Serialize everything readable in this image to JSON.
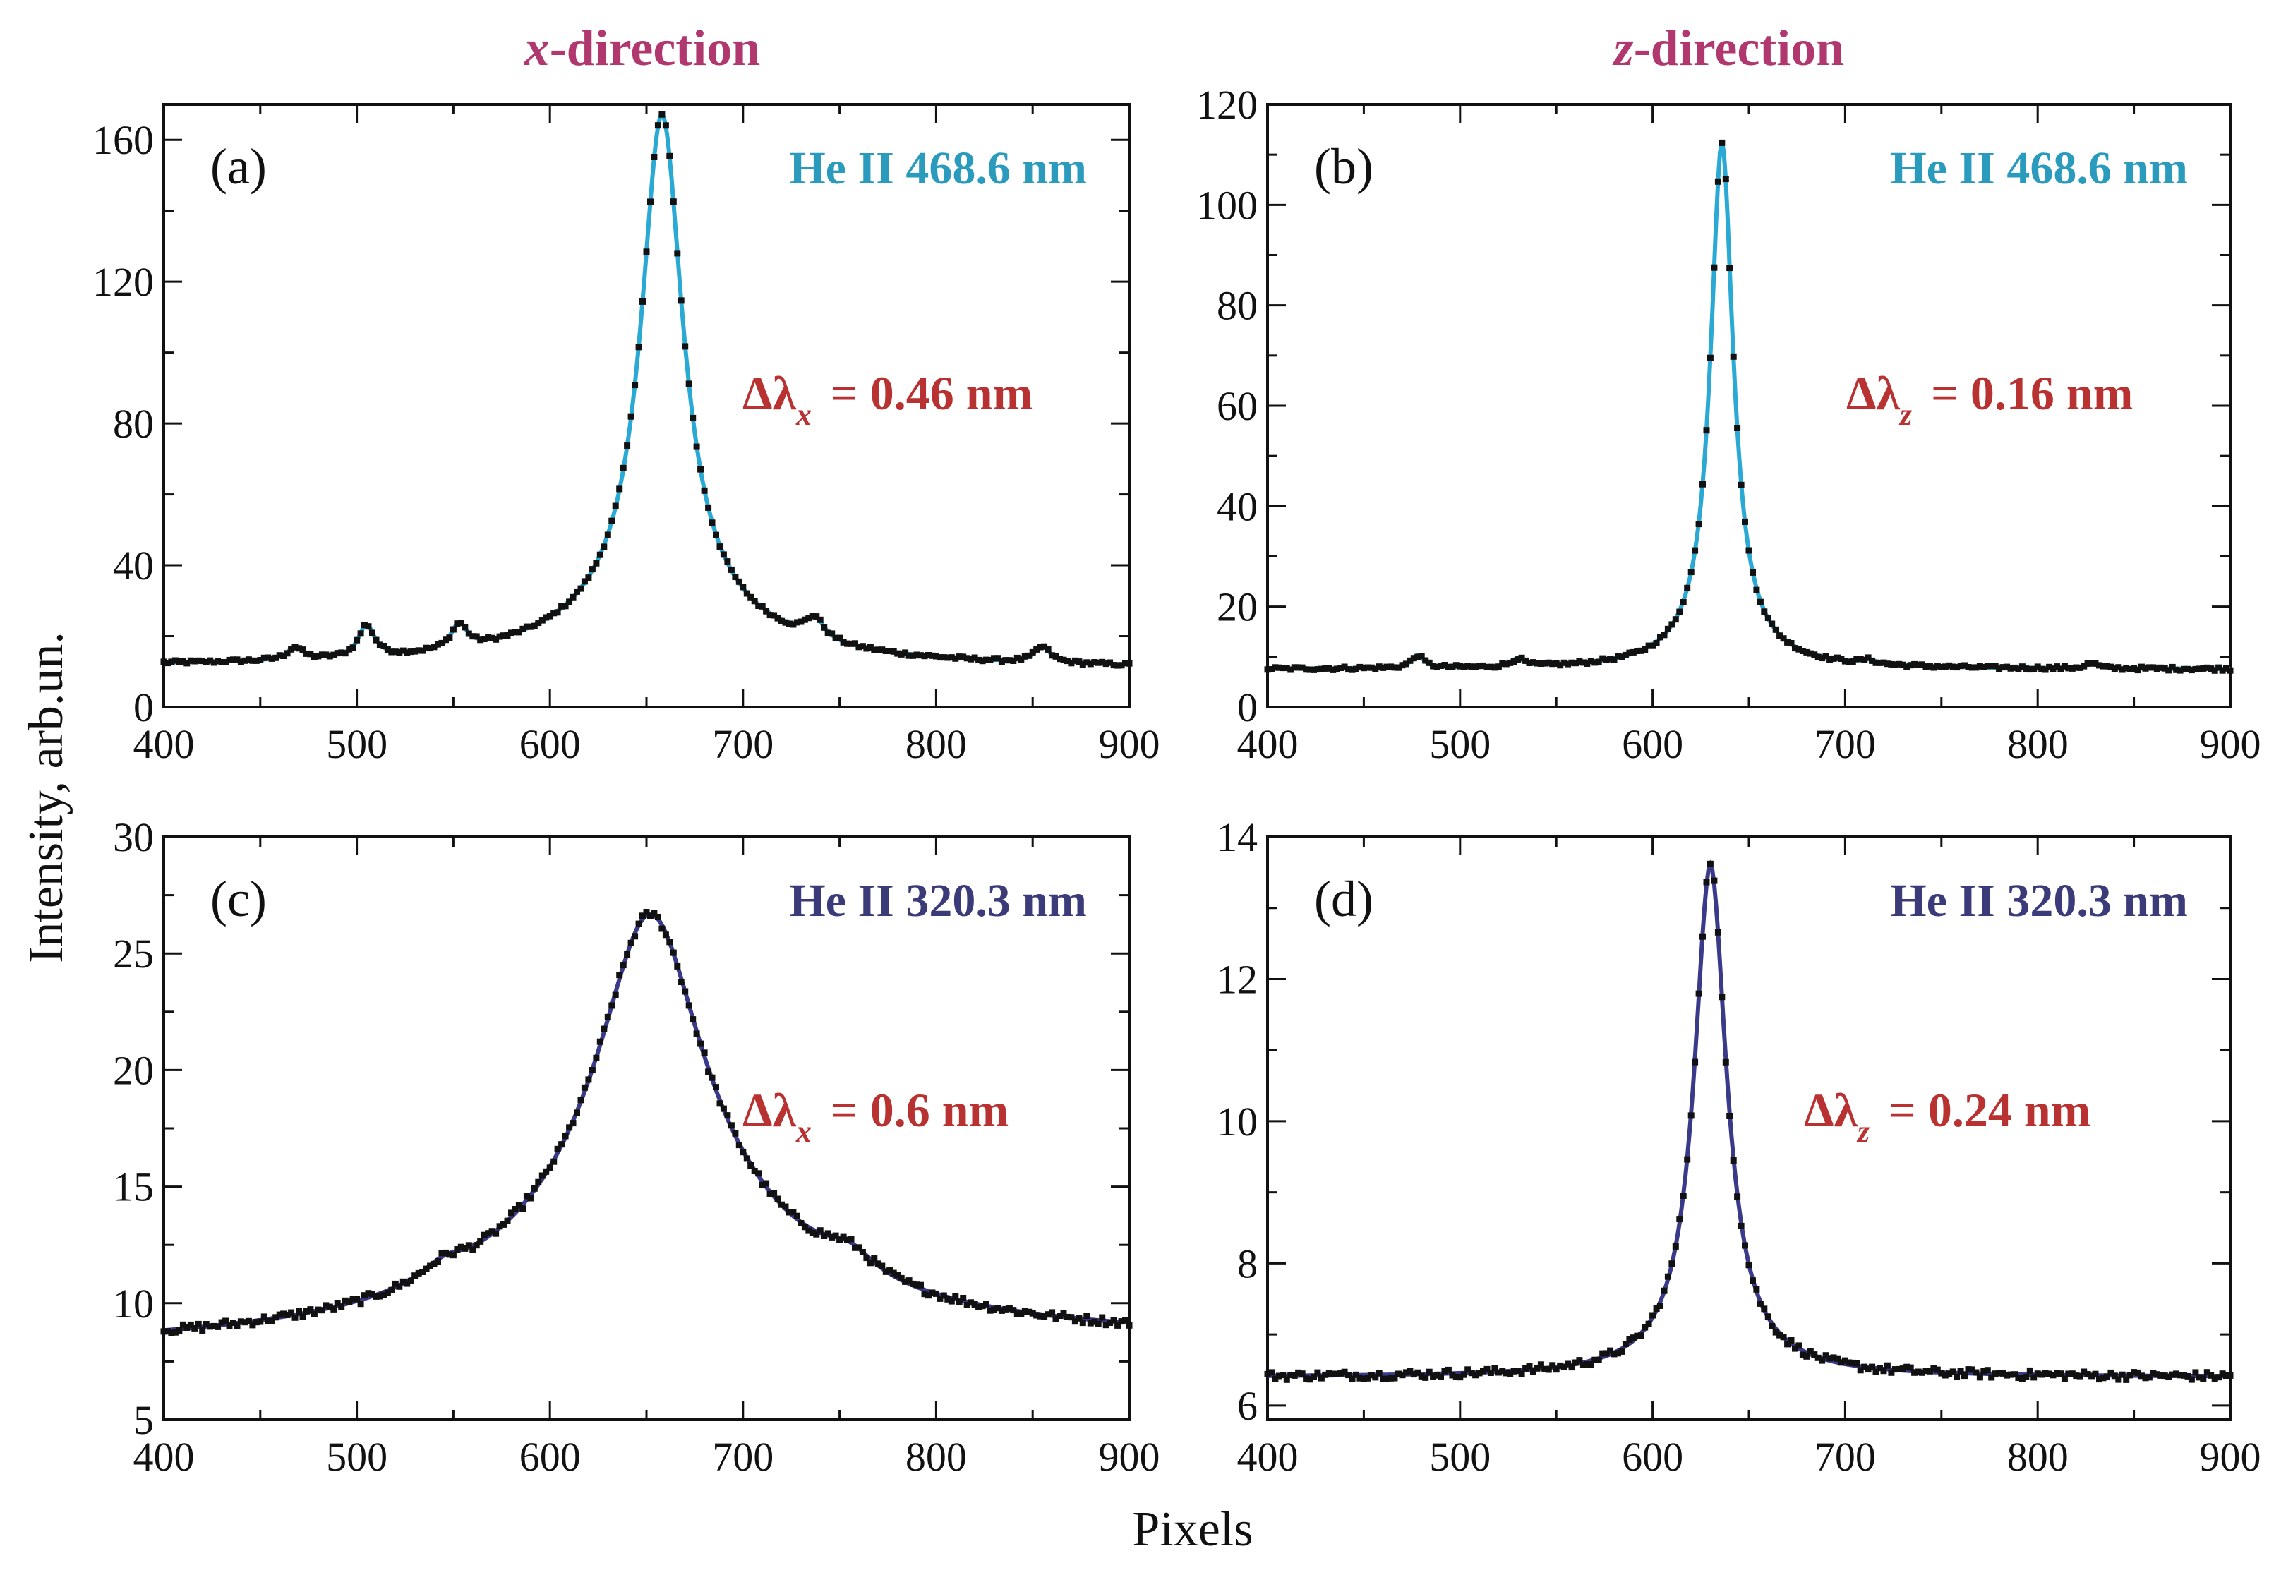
{
  "figure": {
    "column_titles": [
      {
        "italic": "x",
        "rest": "-direction"
      },
      {
        "italic": "z",
        "rest": "-direction"
      }
    ],
    "ylabel": "Intensity, arb.un.",
    "xlabel": "Pixels"
  },
  "colors": {
    "title": "#b0386e",
    "line_468": "#2a9bbd",
    "line_320": "#3b3b7a",
    "width_text": "#b83232",
    "fit_468": "#29a9d4",
    "fit_320": "#3a3a8a",
    "points": "#111111"
  },
  "chart_data": [
    {
      "type": "scatter",
      "panel": "(a)",
      "line_label": "He II 468.6 nm",
      "width_label": {
        "symbol": "Δλ",
        "sub": "x",
        "value": "= 0.46 nm"
      },
      "xlim": [
        400,
        900
      ],
      "ylim": [
        0,
        170
      ],
      "xticks": [
        400,
        500,
        600,
        700,
        800,
        900
      ],
      "yticks": [
        0,
        40,
        80,
        120,
        160
      ],
      "ytick_labels": [
        "0",
        "40",
        "80",
        "120",
        "160"
      ],
      "peak": {
        "x": 658,
        "y": 165
      },
      "series": [
        {
          "name": "measured",
          "style": "points",
          "color_key": "points"
        },
        {
          "name": "fit",
          "style": "line",
          "color_key": "fit_468"
        }
      ]
    },
    {
      "type": "scatter",
      "panel": "(b)",
      "line_label": "He II 468.6 nm",
      "width_label": {
        "symbol": "Δλ",
        "sub": "z",
        "value": "= 0.16 nm"
      },
      "xlim": [
        400,
        900
      ],
      "ylim": [
        0,
        120
      ],
      "xticks": [
        400,
        500,
        600,
        700,
        800,
        900
      ],
      "yticks": [
        0,
        20,
        40,
        60,
        80,
        100,
        120
      ],
      "ytick_labels": [
        "0",
        "20",
        "40",
        "60",
        "80",
        "100",
        "120"
      ],
      "peak": {
        "x": 636,
        "y": 112
      },
      "series": [
        {
          "name": "measured",
          "style": "points",
          "color_key": "points"
        },
        {
          "name": "fit",
          "style": "line",
          "color_key": "fit_468"
        }
      ]
    },
    {
      "type": "scatter",
      "panel": "(c)",
      "line_label": "He II 320.3 nm",
      "width_label": {
        "symbol": "Δλ",
        "sub": "x",
        "value": "= 0.6 nm"
      },
      "xlim": [
        400,
        900
      ],
      "ylim": [
        5,
        30
      ],
      "xticks": [
        400,
        500,
        600,
        700,
        800,
        900
      ],
      "yticks": [
        5,
        10,
        15,
        20,
        25,
        30
      ],
      "ytick_labels": [
        "5",
        "10",
        "15",
        "20",
        "25",
        "30"
      ],
      "peak": {
        "x": 652,
        "y": 27
      },
      "series": [
        {
          "name": "measured",
          "style": "points",
          "color_key": "points"
        },
        {
          "name": "fit",
          "style": "line",
          "color_key": "fit_320"
        }
      ]
    },
    {
      "type": "scatter",
      "panel": "(d)",
      "line_label": "He II 320.3 nm",
      "width_label": {
        "symbol": "Δλ",
        "sub": "z",
        "value": "= 0.24 nm"
      },
      "xlim": [
        400,
        900
      ],
      "ylim": [
        5.8,
        14
      ],
      "xticks": [
        400,
        500,
        600,
        700,
        800,
        900
      ],
      "yticks": [
        6,
        8,
        10,
        12,
        14
      ],
      "ytick_labels": [
        "6",
        "8",
        "10",
        "12",
        "14"
      ],
      "peak": {
        "x": 630,
        "y": 13.4
      },
      "series": [
        {
          "name": "measured",
          "style": "points",
          "color_key": "points"
        },
        {
          "name": "fit",
          "style": "line",
          "color_key": "fit_320"
        }
      ]
    }
  ]
}
